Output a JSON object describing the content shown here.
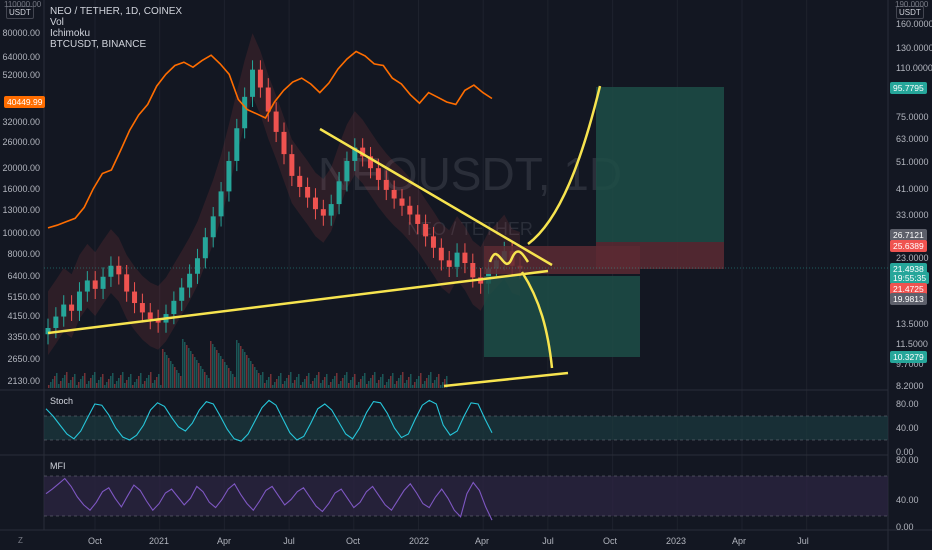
{
  "header": {
    "symbol_line": "NEO / TETHER, 1D, COINEX",
    "indicators": [
      "Vol",
      "Ichimoku",
      "BTCUSDT, BINANCE"
    ],
    "watermark": "NEOUSDT, 1D",
    "watermark_sub": "NEO / TETHER"
  },
  "axes": {
    "left_currency_badge": "USDT",
    "right_currency_badge": "USDT",
    "right_top_tick": "190.0000",
    "left_top_tick": "110000.00",
    "left_ticks": [
      "80000.00",
      "64000.00",
      "52000.00",
      "32000.00",
      "26000.00",
      "20000.00",
      "16000.00",
      "13000.00",
      "10000.00",
      "8000.00",
      "6400.00",
      "5150.00",
      "4150.00",
      "3350.00",
      "2650.00",
      "2130.00"
    ],
    "right_ticks": [
      "160.0000",
      "130.0000",
      "110.0000",
      "75.0000",
      "63.0000",
      "51.0000",
      "41.0000",
      "33.0000",
      "23.0000",
      "13.5000",
      "11.5000",
      "9.7000",
      "8.2000"
    ],
    "x_ticks": [
      "Oct",
      "2021",
      "Apr",
      "Jul",
      "Oct",
      "2022",
      "Apr",
      "Jul",
      "Oct",
      "2023",
      "Apr",
      "Jul"
    ],
    "bottom_left_corner": "Z"
  },
  "price_tags": [
    {
      "text": "95.7795",
      "color": "#26a69a"
    },
    {
      "text": "26.7121",
      "color": "#5d606b"
    },
    {
      "text": "25.6389",
      "color": "#ef5350"
    },
    {
      "text": "21.4938",
      "color": "#26a69a"
    },
    {
      "text": "19:55:35",
      "color": "#26a69a"
    },
    {
      "text": "21.4725",
      "color": "#ef5350"
    },
    {
      "text": "19.9813",
      "color": "#5d606b"
    },
    {
      "text": "10.3279",
      "color": "#26a69a"
    }
  ],
  "btc_tag": {
    "text": "40449.99",
    "color": "#ff6d00"
  },
  "stoch": {
    "title": "Stoch",
    "ticks": [
      "80.00",
      "40.00",
      "0.00"
    ],
    "values": [
      72,
      60,
      45,
      30,
      22,
      35,
      58,
      80,
      78,
      62,
      40,
      25,
      20,
      28,
      45,
      70,
      82,
      76,
      58,
      42,
      35,
      48,
      70,
      84,
      80,
      60,
      38,
      22,
      18,
      30,
      52,
      74,
      86,
      78,
      55,
      32,
      20,
      26,
      48,
      72,
      80,
      70,
      50,
      30,
      22,
      40,
      66,
      84,
      82,
      64,
      40,
      24,
      30,
      55,
      78,
      86,
      80,
      45,
      28,
      35,
      60,
      82,
      80,
      55,
      32
    ]
  },
  "mfi": {
    "title": "MFI",
    "ticks": [
      "80.00",
      "40.00",
      "0.00"
    ],
    "values": [
      55,
      62,
      70,
      78,
      66,
      50,
      38,
      30,
      42,
      58,
      64,
      48,
      35,
      52,
      68,
      60,
      44,
      30,
      40,
      56,
      62,
      50,
      38,
      48,
      66,
      58,
      42,
      34,
      46,
      62,
      70,
      54,
      40,
      30,
      44,
      60,
      66,
      52,
      38,
      46,
      58,
      64,
      50,
      36,
      28,
      40,
      56,
      62,
      48,
      34,
      42,
      58,
      66,
      52,
      38,
      30,
      45,
      60,
      70,
      56,
      40,
      34,
      50,
      62,
      48,
      30,
      20,
      55,
      72,
      60,
      35,
      15
    ]
  },
  "chart_data": {
    "type": "candlestick",
    "series": [
      {
        "name": "NEO / TETHER",
        "close": [
          13.2,
          14.5,
          16.0,
          15.2,
          17.8,
          19.5,
          18.2,
          20.1,
          22.0,
          20.5,
          17.8,
          16.2,
          15.0,
          14.2,
          13.8,
          14.8,
          16.5,
          18.4,
          20.6,
          23.4,
          27.8,
          33.0,
          40.5,
          52.0,
          68.0,
          88.0,
          110.0,
          95.0,
          78.0,
          66.0,
          55.0,
          46.0,
          42.0,
          38.5,
          35.0,
          33.2,
          36.5,
          44.0,
          52.0,
          58.0,
          54.0,
          49.0,
          44.5,
          41.0,
          38.2,
          36.0,
          33.5,
          31.0,
          28.0,
          25.5,
          23.0,
          21.8,
          24.5,
          22.5,
          20.0,
          19.0,
          21.5,
          23.0,
          24.8,
          22.0,
          21.5
        ]
      },
      {
        "name": "BTCUSDT, BINANCE",
        "close": [
          10500,
          10800,
          11200,
          11600,
          13000,
          15800,
          18500,
          19200,
          23500,
          29000,
          34000,
          38000,
          46000,
          52000,
          57000,
          59000,
          56000,
          60000,
          63500,
          58000,
          52000,
          40000,
          36000,
          34500,
          33000,
          39000,
          44000,
          48000,
          50000,
          47000,
          43000,
          47500,
          55000,
          61000,
          66000,
          63000,
          58000,
          57000,
          50000,
          47000,
          42000,
          38500,
          43000,
          41000,
          39000,
          38000,
          44000,
          46500,
          43000,
          40449.99
        ]
      }
    ],
    "x_ticks": [
      "Oct",
      "2021",
      "Apr",
      "Jul",
      "Oct",
      "2022",
      "Apr",
      "Jul",
      "Oct",
      "2023",
      "Apr",
      "Jul"
    ],
    "right_ticks": [
      160,
      130,
      110,
      75,
      63,
      51,
      41,
      33,
      23,
      13.5,
      11.5,
      9.7,
      8.2
    ]
  }
}
